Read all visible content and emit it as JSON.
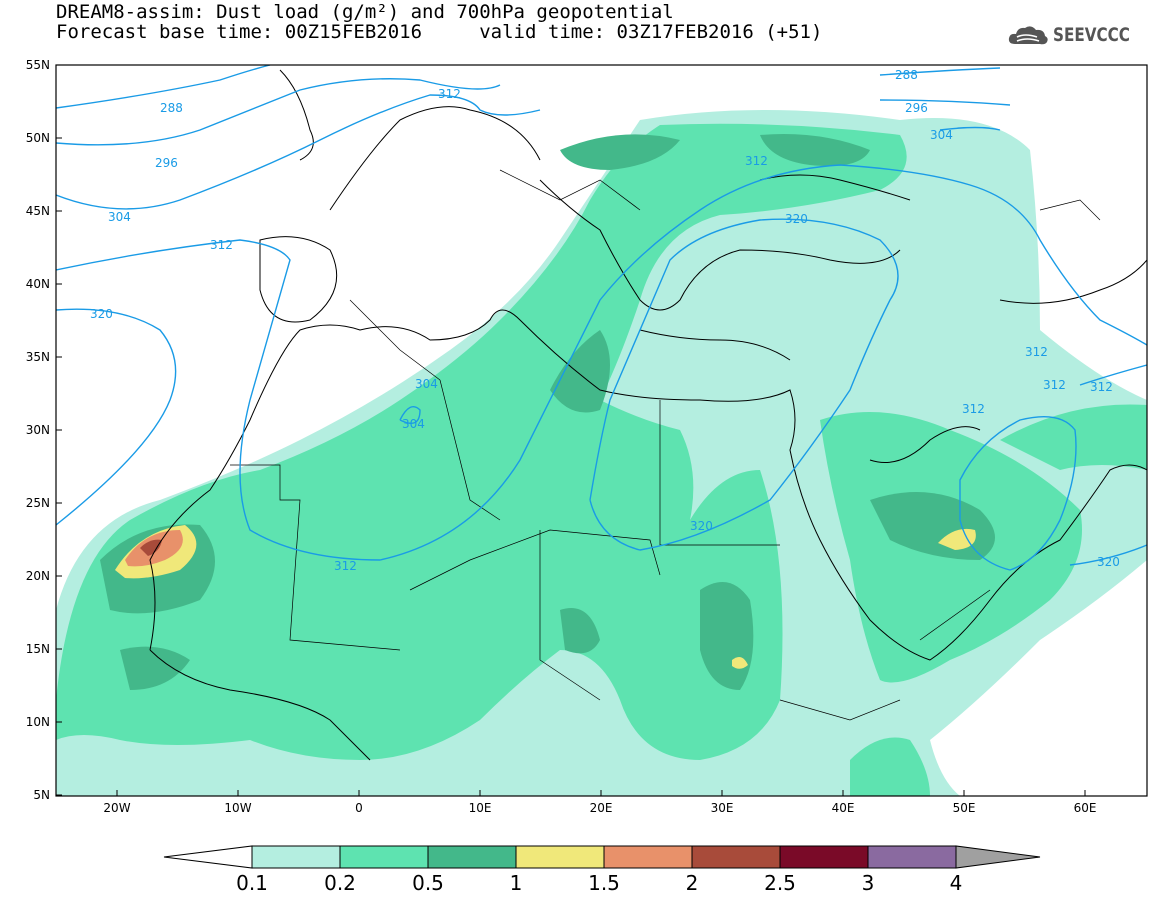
{
  "title": {
    "line1": "DREAM8-assim: Dust load (g/m²) and 700hPa geopotential",
    "line2": "Forecast base time: 00Z15FEB2016     valid time: 03Z17FEB2016 (+51)"
  },
  "logo": {
    "text": "SEEVCCC",
    "icon": "cloud-icon"
  },
  "axes": {
    "lat_labels": [
      "55N",
      "50N",
      "45N",
      "40N",
      "35N",
      "30N",
      "25N",
      "20N",
      "15N",
      "10N",
      "5N"
    ],
    "lon_labels": [
      "20W",
      "10W",
      "0",
      "10E",
      "20E",
      "30E",
      "40E",
      "50E",
      "60E"
    ]
  },
  "contour_labels": [
    "288",
    "296",
    "304",
    "312",
    "320",
    "304",
    "304",
    "312",
    "320",
    "288",
    "296",
    "304",
    "312",
    "320",
    "312",
    "312",
    "312",
    "312",
    "320",
    "312"
  ],
  "colorbar": {
    "labels": [
      "0.1",
      "0.2",
      "0.5",
      "1",
      "1.5",
      "2",
      "2.5",
      "3",
      "4"
    ],
    "colors": [
      "#b4eee0",
      "#5ee3b0",
      "#43b88a",
      "#f0e87a",
      "#e8916a",
      "#a84b3a",
      "#7a0a28",
      "#8a6aa0"
    ],
    "under_color": "#ffffff",
    "over_color": "#a0a0a0"
  },
  "colors": {
    "contour": "#1a9be6"
  }
}
